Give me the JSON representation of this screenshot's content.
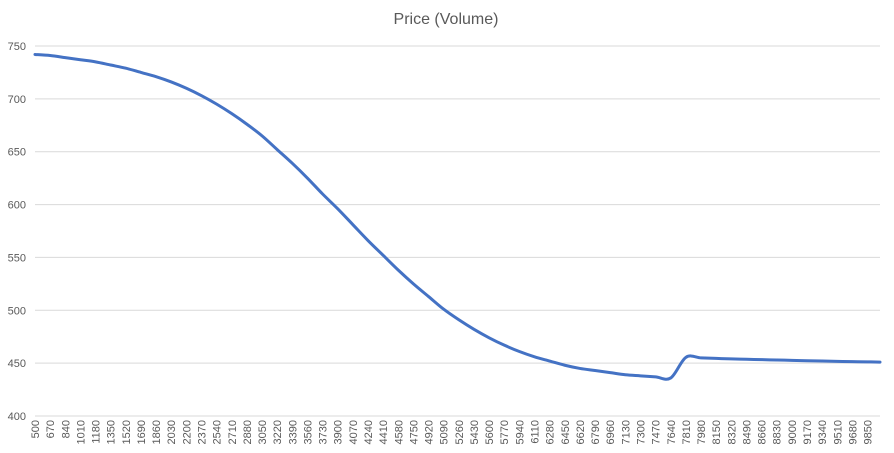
{
  "chart_data": {
    "type": "line",
    "title": "Price (Volume)",
    "xlabel": "",
    "ylabel": "",
    "ylim": [
      400,
      750
    ],
    "yticks": [
      400,
      450,
      500,
      550,
      600,
      650,
      700,
      750
    ],
    "grid": true,
    "legend": "none",
    "x_start": 500,
    "x_end": 9990,
    "x_step": 10,
    "x_tick_labels": [
      "500",
      "670",
      "840",
      "1010",
      "1180",
      "1350",
      "1520",
      "1690",
      "1860",
      "2030",
      "2200",
      "2370",
      "2540",
      "2710",
      "2880",
      "3050",
      "3220",
      "3390",
      "3560",
      "3730",
      "3900",
      "4070",
      "4240",
      "4410",
      "4580",
      "4750",
      "4920",
      "5090",
      "5260",
      "5430",
      "5600",
      "5770",
      "5940",
      "6110",
      "6280",
      "6450",
      "6620",
      "6790",
      "6960",
      "7130",
      "7300",
      "7470",
      "7640",
      "7810",
      "7980",
      "8150",
      "8320",
      "8490",
      "8660",
      "8830",
      "9000",
      "9170",
      "9340",
      "9510",
      "9680",
      "9850"
    ],
    "series": [
      {
        "color": "#4472c4",
        "x": [
          500,
          670,
          840,
          1010,
          1180,
          1350,
          1520,
          1690,
          1860,
          2030,
          2200,
          2370,
          2540,
          2710,
          2880,
          3050,
          3220,
          3390,
          3560,
          3730,
          3900,
          4070,
          4240,
          4410,
          4580,
          4750,
          4920,
          5090,
          5260,
          5430,
          5600,
          5770,
          5940,
          6110,
          6280,
          6450,
          6620,
          6790,
          6960,
          7130,
          7300,
          7470,
          7640,
          7810,
          7980,
          8150,
          8320,
          8490,
          8660,
          8830,
          9000,
          9170,
          9340,
          9510,
          9680,
          9850,
          9990
        ],
        "values": [
          742,
          741,
          739,
          737,
          735,
          732,
          729,
          725,
          721,
          716,
          710,
          703,
          695,
          686,
          676,
          665,
          652,
          639,
          625,
          610,
          596,
          581,
          566,
          552,
          538,
          525,
          513,
          501,
          491,
          482,
          474,
          467,
          461,
          456,
          452,
          448,
          445,
          443,
          441,
          439,
          438,
          437,
          436,
          455.5,
          455,
          454.5,
          454,
          453.7,
          453.3,
          453,
          452.6,
          452.3,
          452,
          451.7,
          451.4,
          451.2,
          451
        ]
      }
    ]
  }
}
